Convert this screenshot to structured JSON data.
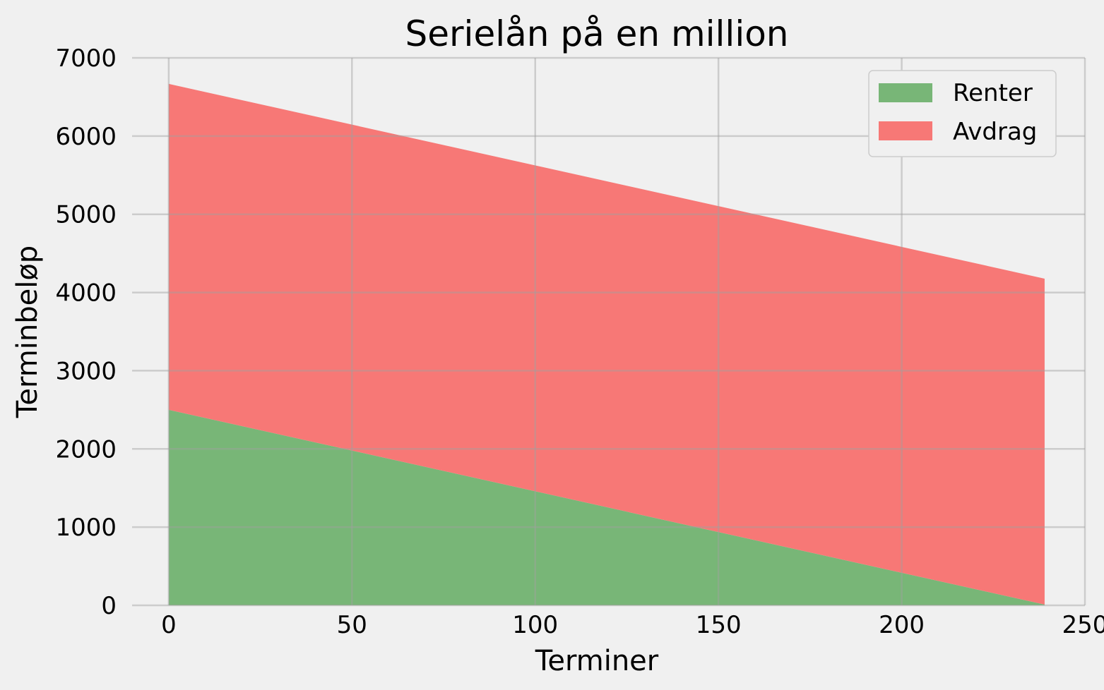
{
  "chart_data": {
    "type": "area",
    "stacked": true,
    "title": "Serielån på en million",
    "xlabel": "Terminer",
    "ylabel": "Terminbeløp",
    "xlim": [
      -10,
      250
    ],
    "ylim": [
      0,
      7000
    ],
    "xticks": [
      0,
      50,
      100,
      150,
      200,
      250
    ],
    "yticks": [
      0,
      1000,
      2000,
      3000,
      4000,
      5000,
      6000,
      7000
    ],
    "grid": true,
    "legend_position": "top-right",
    "series": [
      {
        "name": "Renter",
        "color": "#78b677",
        "x": [
          0,
          239
        ],
        "values": [
          2500,
          10
        ]
      },
      {
        "name": "Avdrag",
        "color": "#f77876",
        "x": [
          0,
          239
        ],
        "values": [
          4167,
          4167
        ]
      }
    ]
  }
}
